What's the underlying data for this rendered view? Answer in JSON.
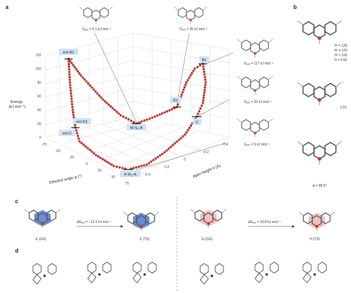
{
  "panels": {
    "a": "a",
    "b": "b",
    "c": "c",
    "d": "d"
  },
  "chart_data": {
    "type": "scatter",
    "y_axis": {
      "label_lines": [
        "Energy",
        "(kJ mol⁻¹)"
      ],
      "ticks": [
        "0",
        "20",
        "40",
        "60",
        "80",
        "100",
        "120"
      ],
      "range": [
        0,
        120
      ]
    },
    "x_axis": {
      "label": "Dihedral angle φ (°)",
      "ticks": [
        "-75",
        "-50",
        "-25",
        "0",
        "25",
        "50",
        "75"
      ],
      "range": [
        -75,
        75
      ]
    },
    "z_axis": {
      "label": "Apex height h (Å)",
      "ticks": [
        "-0.4",
        "-0.2",
        "0",
        "0.2",
        "0.4"
      ]
    },
    "states": [
      {
        "id": "entB",
        "label": "ent-B‡",
        "energy": 117
      },
      {
        "id": "entD",
        "label": "ent-D‡",
        "energy": 35
      },
      {
        "id": "entC",
        "label": "ent-C",
        "energy": 32
      },
      {
        "id": "MS2A",
        "label": "M-S₂-A",
        "energy": 5
      },
      {
        "id": "D",
        "label": "D‡",
        "energy": 35
      },
      {
        "id": "B",
        "label": "B‡",
        "energy": 117
      },
      {
        "id": "C",
        "label": "C",
        "energy": 32
      },
      {
        "id": "PRCA",
        "label": "P-R₂-A",
        "energy": 0
      }
    ],
    "annotations": [
      "Gₐᵣₑ = 0.1 kJ mol⁻¹",
      "Gₐᵣₑ = 35 kJ mol⁻¹",
      "Gₐᵣₑ = 117 kJ mol⁻¹",
      "Gₐᵣₑ = 32 kJ mol⁻¹",
      "Gₐᵣₑ = 5 kJ mol⁻¹"
    ]
  },
  "panel_b": {
    "params": [
      "θ¹ = 120",
      "θ² = 120",
      "θ³ = 105",
      "h = 0.52"
    ],
    "distance": "1.51",
    "phi": "φ = 85.5°"
  },
  "panel_c": {
    "left": {
      "delta": "ΔEₐᵣₑ = −12.1 kJ mol⁻¹",
      "from": "E (GS)",
      "to": "F (TS)"
    },
    "right": {
      "delta": "ΔEₐᵣₑ = 33.8 kJ mol⁻¹",
      "from": "G (GS)",
      "to": "H (TS)"
    }
  },
  "colors": {
    "dot": "#b3322c",
    "tag": "#cfe2f5",
    "blue_ring": "#5b7fce",
    "pink_ring": "#f2b8b8",
    "grid": "#d8d8d8"
  }
}
